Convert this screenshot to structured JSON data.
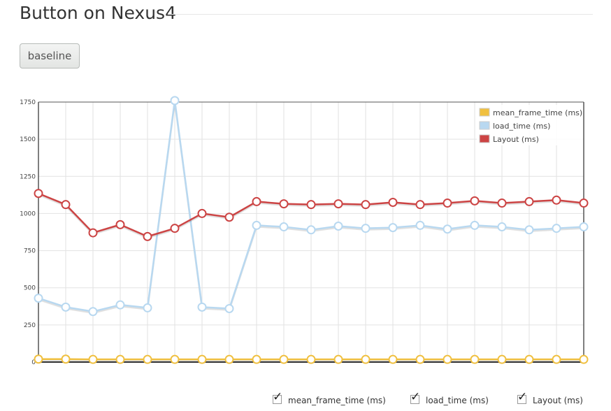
{
  "page": {
    "title": "Button on Nexus4",
    "button_label": "baseline"
  },
  "controls": {
    "checks": [
      {
        "label": "mean_frame_time (ms)",
        "checked": true
      },
      {
        "label": "load_time (ms)",
        "checked": true
      },
      {
        "label": "Layout (ms)",
        "checked": true
      }
    ],
    "check_glyph": "✓"
  },
  "chart_data": {
    "type": "line",
    "ylim": [
      0,
      1750
    ],
    "y_ticks": [
      0,
      250,
      500,
      750,
      1000,
      1250,
      1500,
      1750
    ],
    "y_tick_labels": [
      "0",
      "250",
      "500",
      "750",
      "1000",
      "1250",
      "1500",
      "1750"
    ],
    "x": [
      1,
      2,
      3,
      4,
      5,
      6,
      7,
      8,
      9,
      10,
      11,
      12,
      13,
      14,
      15,
      16,
      17,
      18,
      19,
      20,
      21
    ],
    "grid": true,
    "legend_position": "top-right",
    "series": [
      {
        "name": "mean_frame_time (ms)",
        "color": "#f0c040",
        "values": [
          20,
          20,
          18,
          18,
          18,
          18,
          18,
          18,
          18,
          18,
          18,
          18,
          18,
          18,
          18,
          18,
          18,
          18,
          18,
          18,
          18
        ]
      },
      {
        "name": "load_time (ms)",
        "color": "#b8d8f0",
        "values": [
          430,
          370,
          340,
          385,
          365,
          1760,
          370,
          360,
          920,
          910,
          890,
          915,
          900,
          905,
          920,
          895,
          920,
          910,
          890,
          900,
          910
        ]
      },
      {
        "name": "Layout (ms)",
        "color": "#cc4444",
        "values": [
          1135,
          1060,
          870,
          925,
          845,
          900,
          1000,
          975,
          1080,
          1065,
          1060,
          1065,
          1060,
          1075,
          1060,
          1070,
          1085,
          1070,
          1080,
          1090,
          1070
        ]
      }
    ]
  }
}
